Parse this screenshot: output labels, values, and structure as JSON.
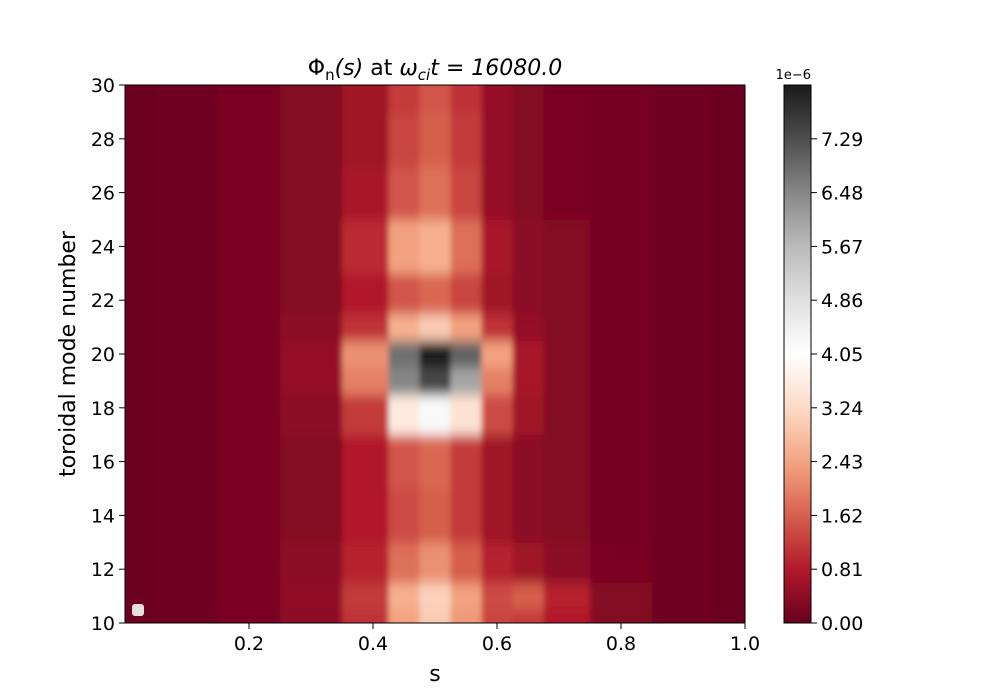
{
  "chart_data": {
    "type": "heatmap",
    "title_parts": {
      "phi": "Φ",
      "n": "n",
      "s_arg": "(s)",
      "at": "at",
      "omega": "ω",
      "ci": "ci",
      "t_eq": "t = 16080.0"
    },
    "xlabel": "s",
    "ylabel": "toroidal mode number",
    "xlim": [
      0.0,
      1.0
    ],
    "ylim": [
      10,
      30
    ],
    "x_ticks": [
      "0.2",
      "0.4",
      "0.6",
      "0.8",
      "1.0"
    ],
    "y_ticks": [
      "10",
      "12",
      "14",
      "16",
      "18",
      "20",
      "22",
      "24",
      "26",
      "28",
      "30"
    ],
    "colorbar": {
      "min": 0.0,
      "max": 8.1,
      "scale_label": "1e−6",
      "ticks": [
        "0.00",
        "0.81",
        "1.62",
        "2.43",
        "3.24",
        "4.05",
        "4.86",
        "5.67",
        "6.48",
        "7.29"
      ],
      "colormap": "RdGy"
    },
    "peak": {
      "s": 0.5,
      "n": 20,
      "value": 8.1
    },
    "intensity_rows": [
      {
        "n": 10,
        "s": [
          0.0,
          0.1,
          0.2,
          0.3,
          0.4,
          0.45,
          0.5,
          0.55,
          0.6,
          0.65,
          0.7,
          0.8,
          0.9,
          1.0
        ],
        "values": [
          0.05,
          0.1,
          0.2,
          0.4,
          1.1,
          2.4,
          3.0,
          2.3,
          1.3,
          1.2,
          0.8,
          0.3,
          0.1,
          0.05
        ]
      },
      {
        "n": 11,
        "s": [
          0.0,
          0.1,
          0.2,
          0.3,
          0.4,
          0.45,
          0.5,
          0.55,
          0.6,
          0.65,
          0.7,
          0.8,
          0.9,
          1.0
        ],
        "values": [
          0.05,
          0.1,
          0.2,
          0.45,
          1.2,
          2.6,
          3.1,
          2.4,
          1.4,
          1.6,
          0.9,
          0.3,
          0.1,
          0.05
        ]
      },
      {
        "n": 12,
        "s": [
          0.0,
          0.1,
          0.2,
          0.3,
          0.4,
          0.45,
          0.5,
          0.55,
          0.6,
          0.65,
          0.7,
          0.8,
          0.9,
          1.0
        ],
        "values": [
          0.05,
          0.1,
          0.2,
          0.4,
          0.9,
          1.8,
          2.2,
          1.6,
          0.9,
          0.6,
          0.4,
          0.2,
          0.1,
          0.05
        ]
      },
      {
        "n": 14,
        "s": [
          0.0,
          0.1,
          0.2,
          0.3,
          0.4,
          0.45,
          0.5,
          0.55,
          0.6,
          0.65,
          0.7,
          0.8,
          0.9,
          1.0
        ],
        "values": [
          0.05,
          0.1,
          0.2,
          0.3,
          0.8,
          1.4,
          1.6,
          1.2,
          0.6,
          0.4,
          0.3,
          0.15,
          0.1,
          0.05
        ]
      },
      {
        "n": 16,
        "s": [
          0.0,
          0.1,
          0.2,
          0.3,
          0.4,
          0.45,
          0.5,
          0.55,
          0.6,
          0.65,
          0.7,
          0.8,
          0.9,
          1.0
        ],
        "values": [
          0.05,
          0.1,
          0.2,
          0.3,
          0.8,
          1.5,
          1.7,
          1.2,
          0.6,
          0.4,
          0.3,
          0.15,
          0.1,
          0.05
        ]
      },
      {
        "n": 18,
        "s": [
          0.0,
          0.1,
          0.2,
          0.3,
          0.4,
          0.45,
          0.5,
          0.55,
          0.6,
          0.65,
          0.7,
          0.8,
          0.9,
          1.0
        ],
        "values": [
          0.05,
          0.1,
          0.2,
          0.4,
          1.2,
          3.6,
          4.2,
          3.4,
          1.4,
          0.6,
          0.3,
          0.15,
          0.1,
          0.05
        ]
      },
      {
        "n": 19,
        "s": [
          0.0,
          0.1,
          0.2,
          0.3,
          0.4,
          0.45,
          0.5,
          0.55,
          0.6,
          0.65,
          0.7,
          0.8,
          0.9,
          1.0
        ],
        "values": [
          0.05,
          0.1,
          0.2,
          0.5,
          2.0,
          6.5,
          7.4,
          6.0,
          2.0,
          0.7,
          0.3,
          0.15,
          0.1,
          0.05
        ]
      },
      {
        "n": 20,
        "s": [
          0.0,
          0.1,
          0.2,
          0.3,
          0.4,
          0.45,
          0.5,
          0.55,
          0.6,
          0.65,
          0.7,
          0.8,
          0.9,
          1.0
        ],
        "values": [
          0.05,
          0.1,
          0.2,
          0.5,
          2.2,
          6.8,
          8.1,
          7.0,
          2.4,
          0.7,
          0.3,
          0.15,
          0.1,
          0.05
        ]
      },
      {
        "n": 21,
        "s": [
          0.0,
          0.1,
          0.2,
          0.3,
          0.4,
          0.45,
          0.5,
          0.55,
          0.6,
          0.65,
          0.7,
          0.8,
          0.9,
          1.0
        ],
        "values": [
          0.05,
          0.1,
          0.2,
          0.4,
          1.1,
          2.6,
          3.0,
          2.4,
          1.1,
          0.5,
          0.3,
          0.15,
          0.1,
          0.05
        ]
      },
      {
        "n": 22,
        "s": [
          0.0,
          0.1,
          0.2,
          0.3,
          0.4,
          0.45,
          0.5,
          0.55,
          0.6,
          0.65,
          0.7,
          0.8,
          0.9,
          1.0
        ],
        "values": [
          0.05,
          0.1,
          0.2,
          0.3,
          0.8,
          1.5,
          1.7,
          1.3,
          0.6,
          0.4,
          0.3,
          0.15,
          0.1,
          0.05
        ]
      },
      {
        "n": 24,
        "s": [
          0.0,
          0.1,
          0.2,
          0.3,
          0.4,
          0.45,
          0.5,
          0.55,
          0.6,
          0.65,
          0.7,
          0.8,
          0.9,
          1.0
        ],
        "values": [
          0.05,
          0.1,
          0.2,
          0.3,
          1.0,
          2.4,
          2.6,
          1.8,
          0.7,
          0.4,
          0.3,
          0.15,
          0.1,
          0.05
        ]
      },
      {
        "n": 26,
        "s": [
          0.0,
          0.1,
          0.2,
          0.3,
          0.4,
          0.45,
          0.5,
          0.55,
          0.6,
          0.65,
          0.7,
          0.8,
          0.9,
          1.0
        ],
        "values": [
          0.05,
          0.1,
          0.2,
          0.3,
          0.7,
          1.5,
          1.8,
          1.3,
          0.5,
          0.3,
          0.2,
          0.15,
          0.1,
          0.05
        ]
      },
      {
        "n": 28,
        "s": [
          0.0,
          0.1,
          0.2,
          0.3,
          0.4,
          0.45,
          0.5,
          0.55,
          0.6,
          0.65,
          0.7,
          0.8,
          0.9,
          1.0
        ],
        "values": [
          0.05,
          0.1,
          0.2,
          0.3,
          0.6,
          1.3,
          1.6,
          1.2,
          0.5,
          0.3,
          0.2,
          0.15,
          0.1,
          0.05
        ]
      },
      {
        "n": 30,
        "s": [
          0.0,
          0.1,
          0.2,
          0.3,
          0.4,
          0.45,
          0.5,
          0.55,
          0.6,
          0.65,
          0.7,
          0.8,
          0.9,
          1.0
        ],
        "values": [
          0.05,
          0.1,
          0.2,
          0.3,
          0.6,
          1.2,
          1.5,
          1.1,
          0.5,
          0.3,
          0.2,
          0.15,
          0.1,
          0.05
        ]
      }
    ]
  }
}
